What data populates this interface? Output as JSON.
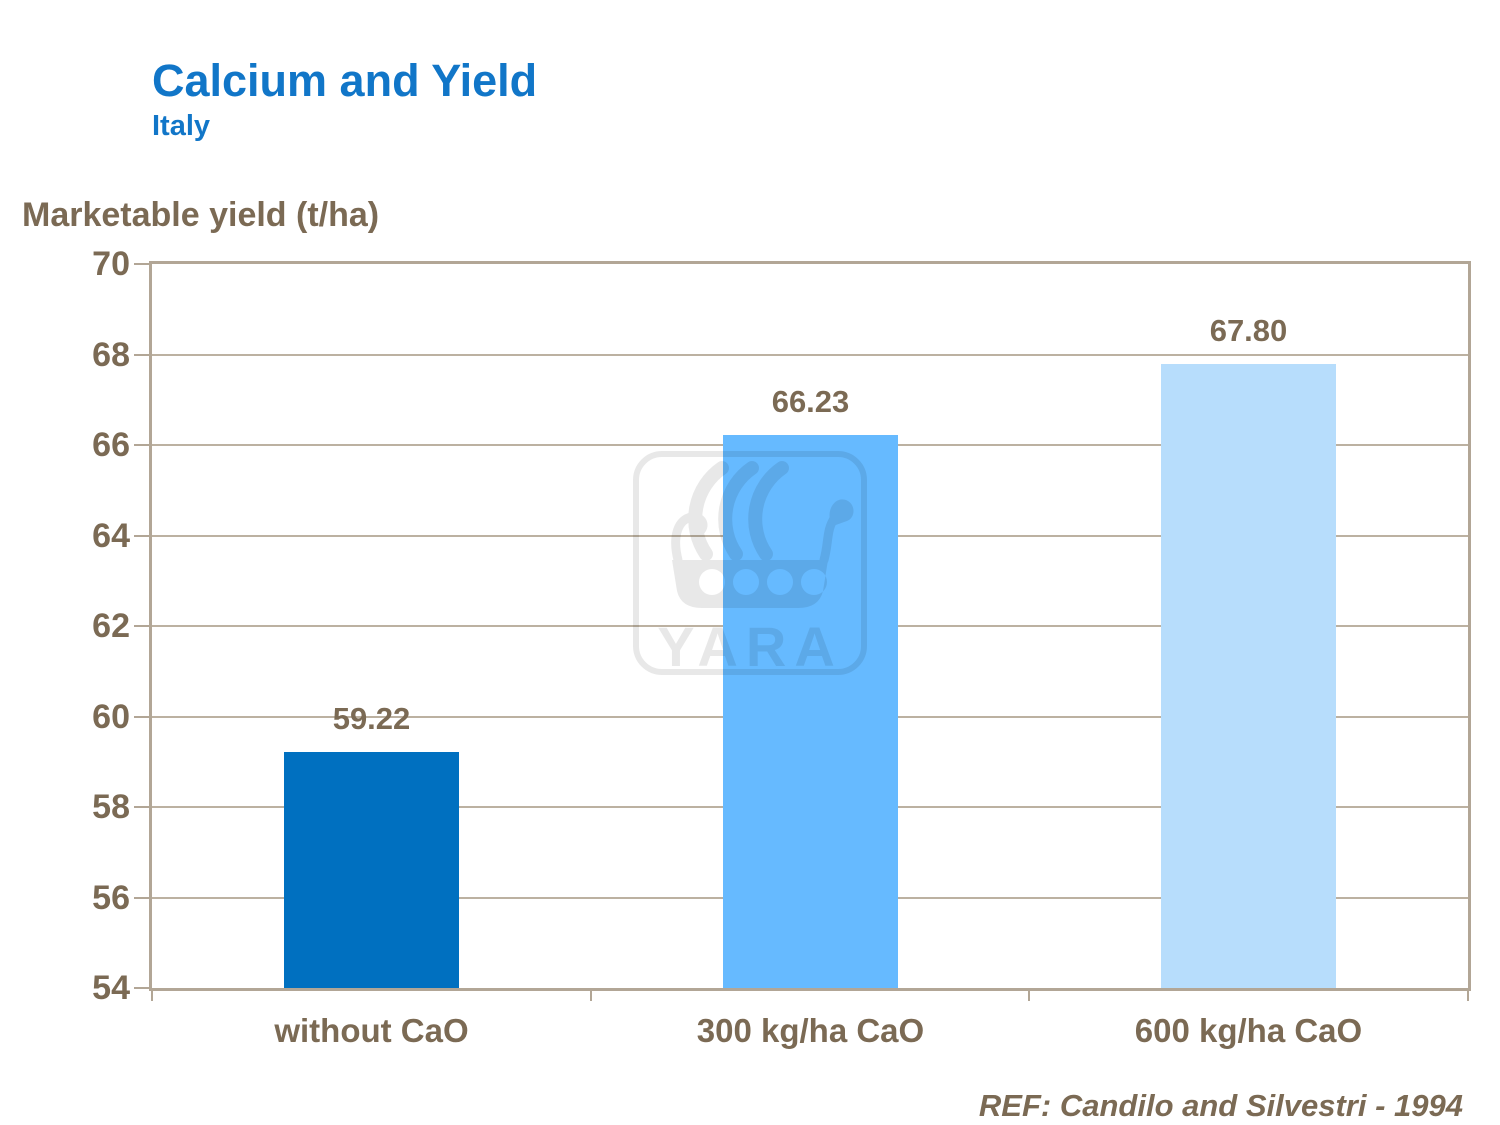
{
  "header": {
    "title": "Calcium and Yield",
    "subtitle": "Italy"
  },
  "footer": {
    "reference": "REF: Candilo and Silvestri - 1994"
  },
  "watermark": {
    "name": "yara-viking-ship-logo",
    "text": "YARA"
  },
  "chart_data": {
    "type": "bar",
    "title": "Calcium and Yield",
    "subtitle": "Italy",
    "ylabel": "Marketable yield (t/ha)",
    "xlabel": "",
    "categories": [
      "without CaO",
      "300 kg/ha CaO",
      "600 kg/ha CaO"
    ],
    "values": [
      59.22,
      66.23,
      67.8
    ],
    "value_labels": [
      "59.22",
      "66.23",
      "67.80"
    ],
    "ylim": [
      54,
      70
    ],
    "ytick_step": 2,
    "yticks": [
      54,
      56,
      58,
      60,
      62,
      64,
      66,
      68,
      70
    ],
    "grid": true,
    "legend_position": "none",
    "colors": {
      "bar_colors": [
        "#0070c0",
        "#66baff",
        "#b7ddfc"
      ],
      "title_color": "#1176c8",
      "label_color": "#7b6a54",
      "axis_color": "#b2a696",
      "gridline_color": "#bcb1a1",
      "background": "#ffffff"
    }
  }
}
